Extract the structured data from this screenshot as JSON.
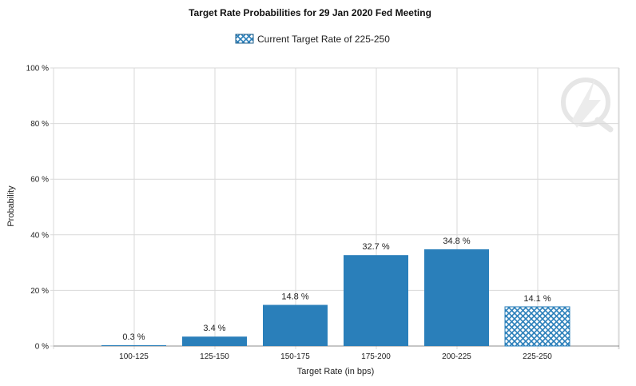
{
  "chart_data": {
    "type": "bar",
    "title": "Target Rate Probabilities for 29 Jan 2020 Fed Meeting",
    "xlabel": "Target Rate (in bps)",
    "ylabel": "Probability",
    "categories": [
      "100-125",
      "125-150",
      "150-175",
      "175-200",
      "200-225",
      "225-250"
    ],
    "series": [
      {
        "name": "Current Target Rate of 225-250",
        "values": [
          0.3,
          3.4,
          14.8,
          32.7,
          34.8,
          14.1
        ],
        "highlight_category": "225-250"
      }
    ],
    "data_labels": [
      "0.3 %",
      "3.4 %",
      "14.8 %",
      "32.7 %",
      "34.8 %",
      "14.1 %"
    ],
    "ylim": [
      0,
      100
    ],
    "yticks": [
      0,
      20,
      40,
      60,
      80,
      100
    ],
    "ytick_labels": [
      "0 %",
      "20 %",
      "40 %",
      "60 %",
      "80 %",
      "100 %"
    ],
    "grid": true,
    "legend_position": "top-center",
    "colors": {
      "bar": "#2a7fba",
      "highlight_pattern": "#2a7fba",
      "grid": "#d9d9d9"
    }
  },
  "watermark_icon": "quikstrike-q-logo"
}
